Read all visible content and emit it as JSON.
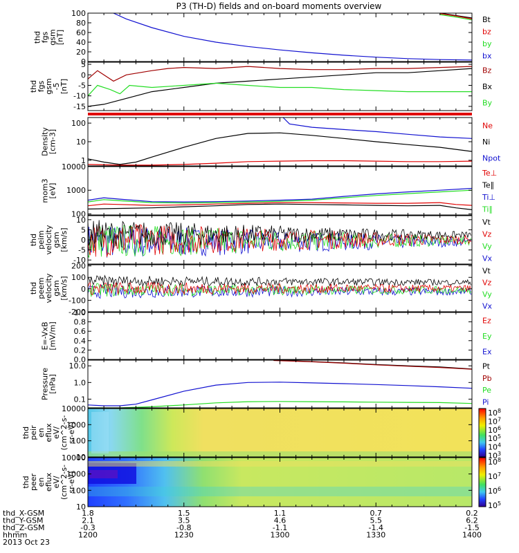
{
  "title": "P3 (TH-D) fields and on-board moments overview",
  "colors": {
    "black": "#000000",
    "red": "#e00000",
    "green": "#22dd22",
    "blue": "#1010d0",
    "darkred": "#a00000"
  },
  "chart_data": [
    {
      "id": "p1",
      "type": "line",
      "ylabel": [
        "thd",
        "fgs",
        "gsm",
        "[nT]"
      ],
      "yticks": [
        "100",
        "80",
        "60",
        "40",
        "20",
        "0"
      ],
      "ylim": [
        0,
        100
      ],
      "legend": [
        {
          "name": "Bt",
          "color": "black"
        },
        {
          "name": "bz",
          "color": "red"
        },
        {
          "name": "by",
          "color": "green"
        },
        {
          "name": "bx",
          "color": "blue"
        }
      ],
      "series": [
        {
          "name": "bx",
          "color": "blue",
          "x": [
            1208,
            1212,
            1220,
            1230,
            1240,
            1250,
            1300,
            1310,
            1320,
            1330,
            1340,
            1350,
            1400
          ],
          "y": [
            100,
            88,
            70,
            52,
            40,
            31,
            24,
            18,
            13,
            9,
            6,
            4,
            3
          ]
        },
        {
          "name": "Bt",
          "color": "black",
          "x": [
            1350,
            1355,
            1400
          ],
          "y": [
            100,
            95,
            90
          ]
        },
        {
          "name": "bz",
          "color": "red",
          "x": [
            1350,
            1355,
            1400
          ],
          "y": [
            99,
            94,
            88
          ]
        },
        {
          "name": "by",
          "color": "green",
          "x": [
            1350,
            1355,
            1400
          ],
          "y": [
            97,
            92,
            86
          ]
        }
      ]
    },
    {
      "id": "p2",
      "type": "line",
      "ylabel": [
        "thd",
        "fgs",
        "gsm",
        "-5",
        "[nT]"
      ],
      "yticks": [
        "5",
        "0",
        "-5",
        "-10",
        "-15"
      ],
      "ylim": [
        -17,
        6
      ],
      "legend": [
        {
          "name": "Bz",
          "color": "darkred"
        },
        {
          "name": "Bx",
          "color": "black"
        },
        {
          "name": "By",
          "color": "green"
        }
      ],
      "series": [
        {
          "name": "Bz",
          "color": "darkred",
          "x": [
            1200,
            1203,
            1208,
            1212,
            1220,
            1225,
            1230,
            1240,
            1250,
            1300,
            1310,
            1320,
            1330,
            1340,
            1350,
            1400
          ],
          "y": [
            -2,
            2,
            -3,
            0,
            2,
            3,
            3.5,
            3,
            4,
            3,
            2.5,
            2.5,
            3,
            3,
            3.5,
            4
          ]
        },
        {
          "name": "Bx",
          "color": "black",
          "x": [
            1200,
            1205,
            1210,
            1215,
            1220,
            1230,
            1240,
            1250,
            1300,
            1310,
            1320,
            1330,
            1340,
            1350,
            1400
          ],
          "y": [
            -15,
            -14,
            -12,
            -10,
            -8,
            -6,
            -4,
            -3,
            -2,
            -1,
            0,
            1,
            1,
            2,
            3
          ]
        },
        {
          "name": "By",
          "color": "green",
          "x": [
            1200,
            1203,
            1207,
            1210,
            1213,
            1220,
            1230,
            1240,
            1250,
            1300,
            1310,
            1320,
            1330,
            1340,
            1350,
            1400
          ],
          "y": [
            -10,
            -5,
            -7,
            -9,
            -5,
            -6,
            -5,
            -4,
            -5,
            -6,
            -6,
            -7,
            -7.5,
            -8,
            -8,
            -8
          ]
        }
      ]
    },
    {
      "id": "p3",
      "type": "bar",
      "note": "red flag band"
    },
    {
      "id": "p4",
      "type": "line",
      "ylabel": [
        "Density",
        "[cm-3]"
      ],
      "log": true,
      "yticks": [
        "100",
        "10",
        "1"
      ],
      "ylim": [
        0.5,
        200
      ],
      "legend": [
        {
          "name": "Ne",
          "color": "red"
        },
        {
          "name": "Ni",
          "color": "black"
        },
        {
          "name": "Npot",
          "color": "blue"
        }
      ],
      "series": [
        {
          "name": "Ni",
          "color": "black",
          "x": [
            1200,
            1205,
            1210,
            1215,
            1220,
            1230,
            1240,
            1250,
            1300,
            1310,
            1320,
            1330,
            1340,
            1350,
            1400
          ],
          "y": [
            1.2,
            0.8,
            0.6,
            0.8,
            1.5,
            5,
            15,
            28,
            30,
            22,
            15,
            10,
            7,
            5,
            3
          ]
        },
        {
          "name": "Ne",
          "color": "red",
          "x": [
            1200,
            1210,
            1220,
            1230,
            1240,
            1250,
            1300,
            1310,
            1320,
            1330,
            1340,
            1350,
            1400
          ],
          "y": [
            0.6,
            0.55,
            0.55,
            0.6,
            0.7,
            0.85,
            0.9,
            0.95,
            0.95,
            0.9,
            0.85,
            0.85,
            0.9
          ]
        },
        {
          "name": "Npot",
          "color": "blue",
          "x": [
            1301,
            1303,
            1310,
            1320,
            1330,
            1340,
            1350,
            1400
          ],
          "y": [
            200,
            90,
            60,
            45,
            35,
            25,
            18,
            15
          ]
        }
      ]
    },
    {
      "id": "p5",
      "type": "line",
      "ylabel": [
        "mom3",
        "[eV]"
      ],
      "log": true,
      "yticks": [
        "10000",
        "1000",
        "100"
      ],
      "ylim": [
        90,
        10000
      ],
      "legend": [
        {
          "name": "Te⊥",
          "color": "red"
        },
        {
          "name": "Te∥",
          "color": "black"
        },
        {
          "name": "Ti⊥",
          "color": "blue"
        },
        {
          "name": "Ti∥",
          "color": "green"
        }
      ],
      "series": [
        {
          "name": "Ti⊥",
          "color": "blue",
          "x": [
            1200,
            1205,
            1210,
            1220,
            1230,
            1240,
            1250,
            1300,
            1310,
            1320,
            1330,
            1340,
            1350,
            1400
          ],
          "y": [
            380,
            480,
            420,
            330,
            320,
            330,
            350,
            380,
            420,
            550,
            700,
            850,
            1000,
            1200
          ]
        },
        {
          "name": "Ti∥",
          "color": "green",
          "x": [
            1200,
            1205,
            1210,
            1220,
            1230,
            1240,
            1250,
            1300,
            1310,
            1320,
            1330,
            1340,
            1350,
            1400
          ],
          "y": [
            320,
            400,
            360,
            300,
            290,
            300,
            320,
            340,
            380,
            480,
            600,
            720,
            850,
            1000
          ]
        },
        {
          "name": "Te⊥",
          "color": "red",
          "x": [
            1200,
            1205,
            1210,
            1220,
            1230,
            1240,
            1250,
            1300,
            1310,
            1320,
            1330,
            1340,
            1350,
            1355,
            1400
          ],
          "y": [
            220,
            260,
            250,
            230,
            240,
            260,
            280,
            300,
            300,
            290,
            280,
            280,
            300,
            250,
            230
          ]
        },
        {
          "name": "Te∥",
          "color": "black",
          "x": [
            1200,
            1210,
            1220,
            1230,
            1240,
            1250,
            1300,
            1310,
            1320,
            1330,
            1340,
            1350,
            1355,
            1400
          ],
          "y": [
            160,
            170,
            180,
            200,
            220,
            250,
            260,
            250,
            240,
            230,
            220,
            230,
            180,
            150
          ]
        }
      ]
    },
    {
      "id": "p6",
      "type": "line",
      "ylabel": [
        "thd",
        "peim",
        "velocity",
        "gsm",
        "[km/s]"
      ],
      "yticks": [
        "10",
        "5",
        "0",
        "-5",
        "-10"
      ],
      "ylim": [
        -12,
        12
      ],
      "legend": [
        {
          "name": "Vt",
          "color": "black"
        },
        {
          "name": "Vz",
          "color": "red"
        },
        {
          "name": "Vy",
          "color": "green"
        },
        {
          "name": "Vx",
          "color": "blue"
        }
      ],
      "noise": {
        "center_black": 3,
        "amp_start": 9,
        "amp_end": 2
      }
    },
    {
      "id": "p7",
      "type": "line",
      "ylabel": [
        "thd",
        "peem",
        "velocity",
        "gsm",
        "[km/s]"
      ],
      "yticks": [
        "200",
        "100",
        "0",
        "-100",
        "-200"
      ],
      "ylim": [
        -200,
        210
      ],
      "legend": [
        {
          "name": "Vt",
          "color": "black"
        },
        {
          "name": "Vz",
          "color": "red"
        },
        {
          "name": "Vy",
          "color": "green"
        },
        {
          "name": "Vx",
          "color": "blue"
        }
      ],
      "noise": {
        "center_black": 70,
        "amp_start": 60,
        "amp_end": 30
      }
    },
    {
      "id": "p8",
      "type": "line",
      "ylabel": [
        "E=-VxB",
        "[mV/m]"
      ],
      "yticks": [
        "1.0",
        "0.8",
        "0.6",
        "0.4",
        "0.2",
        "0.0"
      ],
      "ylim": [
        0,
        1
      ],
      "legend": [
        {
          "name": "Ez",
          "color": "red"
        },
        {
          "name": "Ey",
          "color": "green"
        },
        {
          "name": "Ex",
          "color": "blue"
        }
      ],
      "series": []
    },
    {
      "id": "p9",
      "type": "line",
      "ylabel": [
        "Pressure",
        "[nPa]"
      ],
      "log": true,
      "yticks": [
        "10.0",
        "1.0",
        "0.1"
      ],
      "ylim": [
        0.03,
        22
      ],
      "legend": [
        {
          "name": "Pt",
          "color": "black"
        },
        {
          "name": "Pb",
          "color": "darkred"
        },
        {
          "name": "Pe",
          "color": "green"
        },
        {
          "name": "Pi",
          "color": "blue"
        }
      ],
      "series": [
        {
          "name": "Pt",
          "color": "black",
          "x": [
            1258,
            1310,
            1320,
            1330,
            1340,
            1350,
            1400
          ],
          "y": [
            22,
            18,
            15,
            12,
            10,
            8.5,
            6.5
          ]
        },
        {
          "name": "Pb",
          "color": "darkred",
          "x": [
            1258,
            1310,
            1320,
            1330,
            1340,
            1350,
            1400
          ],
          "y": [
            21,
            17.5,
            14.5,
            11.5,
            9.5,
            8,
            6.2
          ]
        },
        {
          "name": "Pi",
          "color": "blue",
          "x": [
            1200,
            1205,
            1210,
            1215,
            1220,
            1230,
            1240,
            1250,
            1300,
            1310,
            1320,
            1330,
            1340,
            1350,
            1400
          ],
          "y": [
            0.045,
            0.04,
            0.04,
            0.05,
            0.09,
            0.3,
            0.7,
            1.0,
            1.05,
            0.95,
            0.85,
            0.75,
            0.65,
            0.55,
            0.45
          ]
        },
        {
          "name": "Pe",
          "color": "green",
          "x": [
            1200,
            1205,
            1210,
            1220,
            1230,
            1240,
            1250,
            1300,
            1310,
            1320,
            1330,
            1340,
            1350,
            1400
          ],
          "y": [
            0.03,
            0.03,
            0.03,
            0.035,
            0.045,
            0.06,
            0.07,
            0.072,
            0.07,
            0.068,
            0.066,
            0.064,
            0.062,
            0.055
          ]
        }
      ]
    },
    {
      "id": "p10",
      "type": "heatmap",
      "ylabel": [
        "thd",
        "peir",
        "en",
        "eflux",
        "eV/",
        "(cm^2-s-",
        "sr-eV)"
      ],
      "yticks": [
        "10000",
        "1000",
        "100",
        "10"
      ],
      "colorbar": [
        "10^8",
        "10^7",
        "10^6",
        "10^5",
        "10^4",
        "10^3"
      ]
    },
    {
      "id": "p11",
      "type": "heatmap",
      "ylabel": [
        "thd",
        "peer",
        "en",
        "eflux",
        "eV/",
        "(cm^2-s-",
        "sr-eV)"
      ],
      "yticks": [
        "10000",
        "1000",
        "100",
        "10"
      ],
      "colorbar": [
        "10^8",
        "10^7",
        "10^6",
        "10^5"
      ]
    }
  ],
  "xaxis": {
    "rows": [
      {
        "label": "thd_X-GSM",
        "values": [
          "1.8",
          "1.5",
          "1.1",
          "0.7",
          "0.2"
        ]
      },
      {
        "label": "thd_Y-GSM",
        "values": [
          "2.1",
          "3.5",
          "4.6",
          "5.5",
          "6.2"
        ]
      },
      {
        "label": "thd_Z-GSM",
        "values": [
          "-0.3",
          "-0.8",
          "-1.1",
          "-1.4",
          "-1.5"
        ]
      },
      {
        "label": "hhmm",
        "values": [
          "1200",
          "1230",
          "1300",
          "1330",
          "1400"
        ]
      }
    ],
    "date": "2013 Oct 23"
  }
}
